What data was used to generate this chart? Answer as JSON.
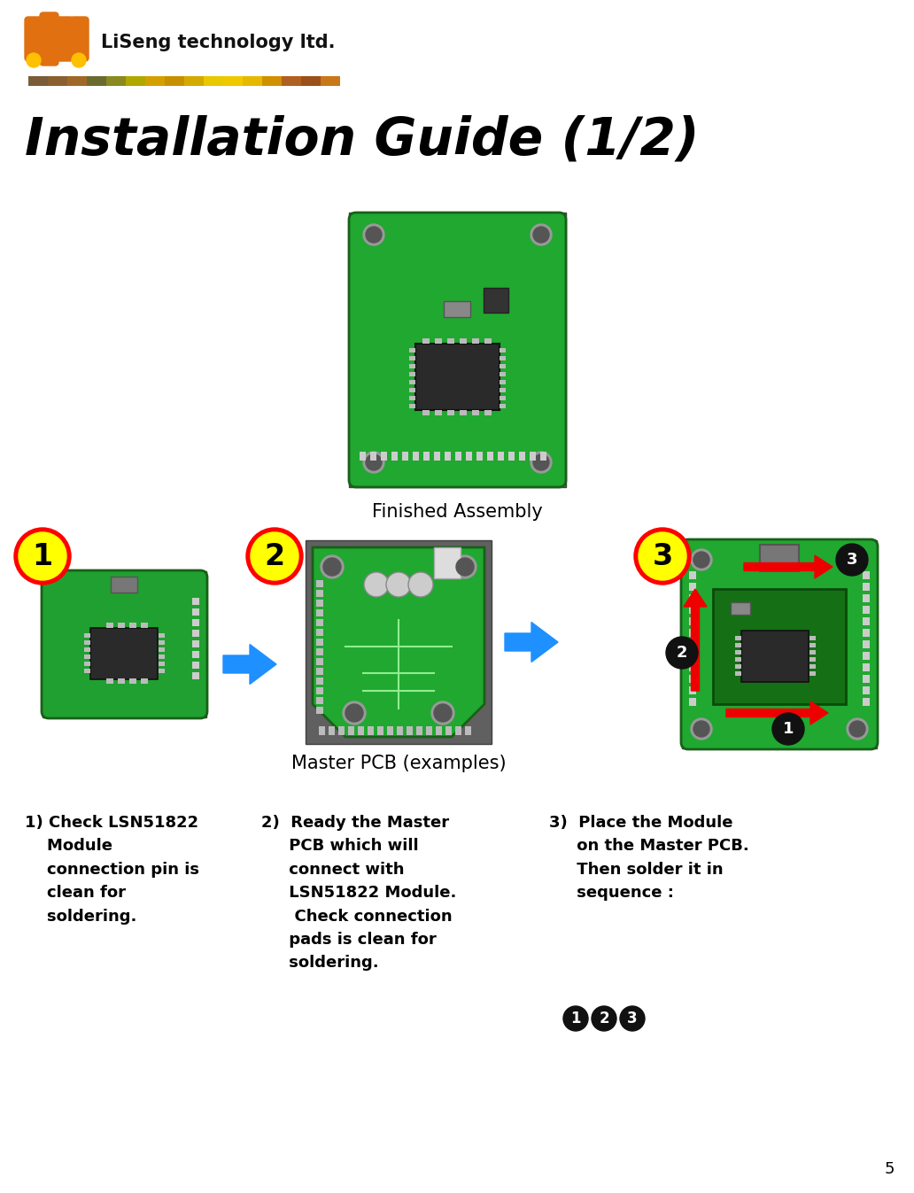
{
  "title": "Installation Guide (1/2)",
  "company": "LiSeng technology ltd.",
  "page_number": "5",
  "bg_color": "#ffffff",
  "title_color": "#000000",
  "title_fontsize": 42,
  "finished_assembly_label": "Finished Assembly",
  "master_pcb_label": "Master PCB (examples)",
  "step1_text": "1) Check LSN51822\n    Module\n    connection pin is\n    clean for\n    soldering.",
  "step2_text": "2)  Ready the Master\n     PCB which will\n     connect with\n     LSN51822 Module.\n      Check connection\n     pads is clean for\n     soldering.",
  "step3_text": "3)  Place the Module\n     on the Master PCB.\n     Then solder it in\n     sequence :",
  "colorbar_colors": [
    "#7a5c38",
    "#8a6030",
    "#a06828",
    "#6b6b30",
    "#8a8a20",
    "#b0a800",
    "#d4a000",
    "#c89000",
    "#d4aa00",
    "#e8c800",
    "#f0c800",
    "#e8b800",
    "#d09000",
    "#b06020",
    "#9a5018",
    "#c87818"
  ],
  "arrow_color": "#1e90ff",
  "step_circle_fill": "#ffff00",
  "step_circle_border": "#ff0000"
}
